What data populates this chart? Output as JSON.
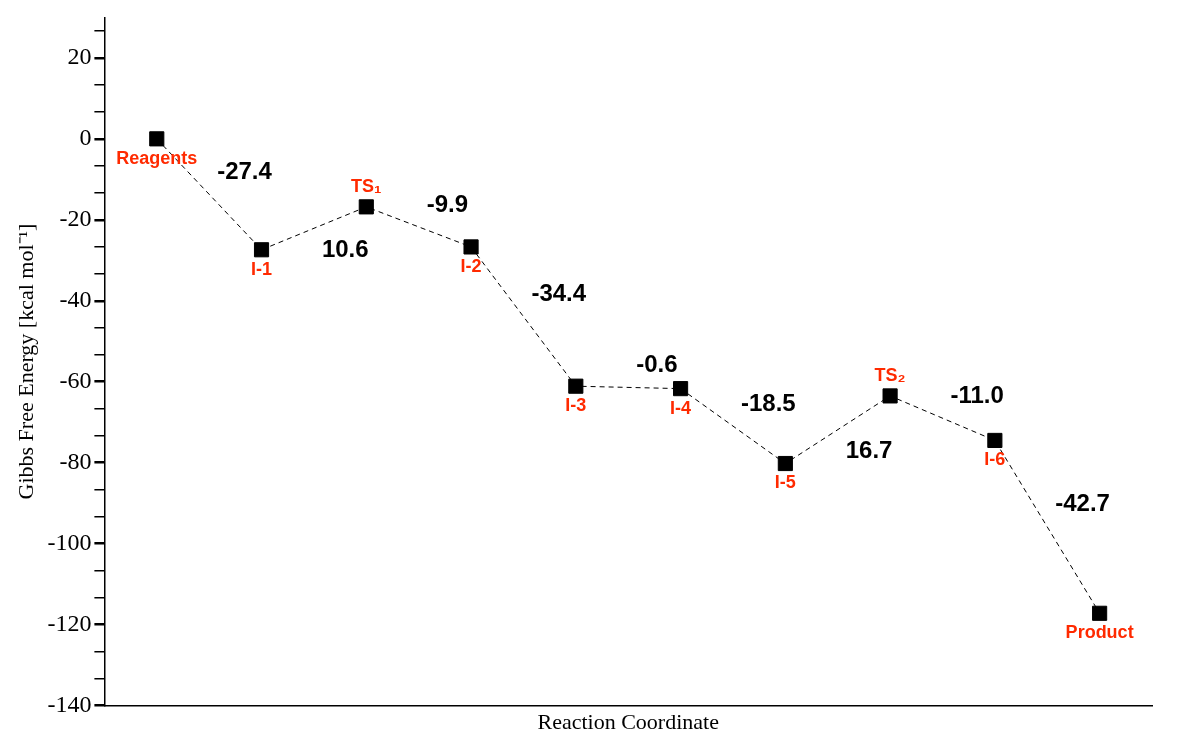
{
  "chart_data": {
    "type": "line",
    "xlabel": "Reaction Coordinate",
    "ylabel": "Gibbs Free Energy [kcal mol⁻¹]",
    "categories": [
      "Reagents",
      "I-1",
      "TS₁",
      "I-2",
      "I-3",
      "I-4",
      "I-5",
      "TS₂",
      "I-6",
      "Product"
    ],
    "series": [
      {
        "color": "#000000",
        "values": [
          0,
          -27.4,
          -16.8,
          -26.7,
          -61.1,
          -61.7,
          -80.2,
          -63.5,
          -74.5,
          -117.2
        ]
      }
    ],
    "annotations": [
      "-27.4",
      "10.6",
      "-9.9",
      "-34.4",
      "-0.6",
      "-18.5",
      "16.7",
      "-11.0",
      "-42.7"
    ],
    "ylim": [
      -140,
      30
    ],
    "yticks": [
      -140,
      {
        "value": -133.3,
        "label": null
      },
      {
        "value": -126.7,
        "label": null
      },
      -120,
      {
        "value": -113.3,
        "label": null
      },
      {
        "value": -106.7,
        "label": null
      },
      -100,
      {
        "value": -93.3,
        "label": null
      },
      {
        "value": -86.7,
        "label": null
      },
      -80,
      {
        "value": -73.3,
        "label": null
      },
      {
        "value": -66.7,
        "label": null
      },
      -60,
      {
        "value": -53.3,
        "label": null
      },
      {
        "value": -46.7,
        "label": null
      },
      -40,
      {
        "value": -33.3,
        "label": null
      },
      {
        "value": -26.7,
        "label": null
      },
      -20,
      {
        "value": -13.3,
        "label": null
      },
      {
        "value": -6.7,
        "label": null
      },
      0,
      {
        "value": 6.7,
        "label": null
      },
      {
        "value": 13.3,
        "label": null
      },
      20,
      {
        "value": 26.7,
        "label": null
      }
    ],
    "tick_labels": "y",
    "grid": false,
    "legend": false,
    "marker": "square",
    "line_style": "dashed"
  }
}
